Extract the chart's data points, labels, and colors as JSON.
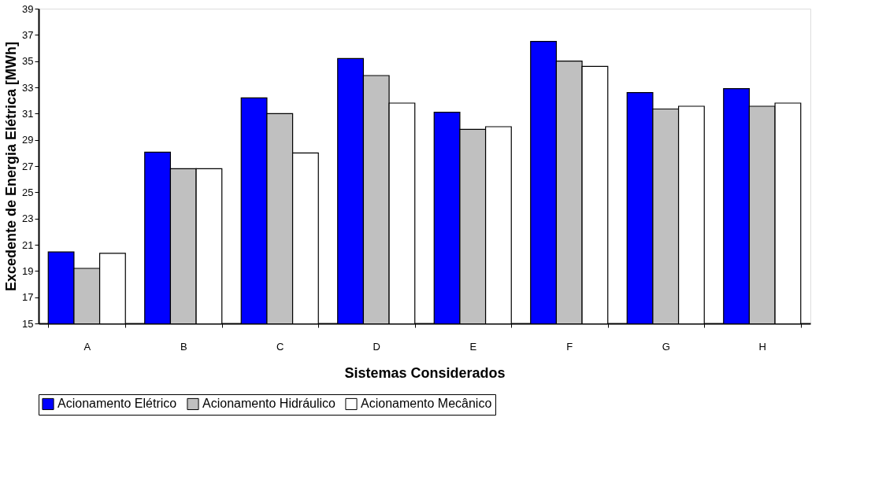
{
  "chart_data": {
    "type": "bar",
    "xlabel": "Sistemas Considerados",
    "ylabel": "Excedente de Energia Elétrica [MWh]",
    "categories": [
      "A",
      "B",
      "C",
      "D",
      "E",
      "F",
      "G",
      "H"
    ],
    "series": [
      {
        "name": "Acionamento Elétrico",
        "color": "#0000ff",
        "values": [
          20.45,
          28.06,
          32.2,
          35.2,
          31.1,
          36.5,
          32.6,
          32.9
        ]
      },
      {
        "name": "Acionamento Hidráulico",
        "color": "#c0c0c0",
        "values": [
          19.2,
          26.8,
          31.0,
          33.9,
          29.8,
          35.0,
          31.35,
          31.56
        ]
      },
      {
        "name": "Acionamento Mecânico",
        "color": "#ffffff",
        "values": [
          20.35,
          26.8,
          28.0,
          31.8,
          30.0,
          34.6,
          31.56,
          31.8
        ]
      }
    ],
    "ylim": [
      15,
      39
    ],
    "yticks": [
      15,
      17,
      19,
      21,
      23,
      25,
      27,
      29,
      31,
      33,
      35,
      37,
      39
    ],
    "grid": false,
    "legend": "bottom"
  }
}
